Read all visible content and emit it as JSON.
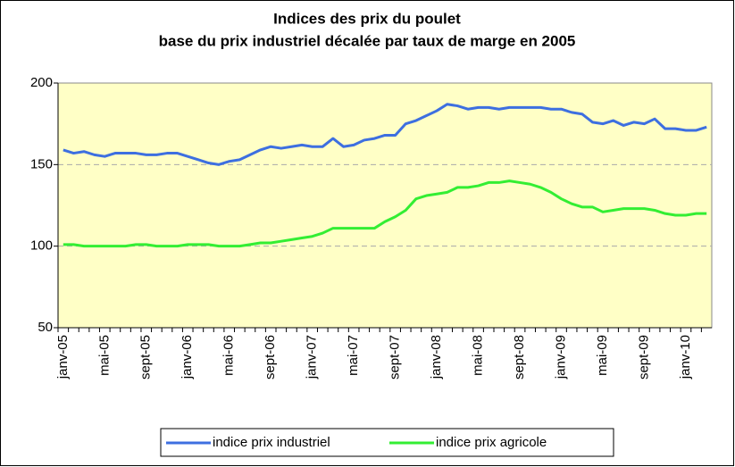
{
  "chart_data": {
    "type": "line",
    "title": "Indices des prix du poulet",
    "subtitle": "base du prix industriel décalée par taux de marge en 2005",
    "categories": [
      "janv-05",
      null,
      null,
      null,
      "mai-05",
      null,
      null,
      null,
      "sept-05",
      null,
      null,
      null,
      "janv-06",
      null,
      null,
      null,
      "mai-06",
      null,
      null,
      null,
      "sept-06",
      null,
      null,
      null,
      "janv-07",
      null,
      null,
      null,
      "mai-07",
      null,
      null,
      null,
      "sept-07",
      null,
      null,
      null,
      "janv-08",
      null,
      null,
      null,
      "mai-08",
      null,
      null,
      null,
      "sept-08",
      null,
      null,
      null,
      "janv-09",
      null,
      null,
      null,
      "mai-09",
      null,
      null,
      null,
      "sept-09",
      null,
      null,
      null,
      "janv-10",
      null,
      null
    ],
    "series": [
      {
        "name": "indice prix industriel",
        "color": "#3d6fe0",
        "values": [
          159,
          157,
          158,
          156,
          155,
          157,
          157,
          157,
          156,
          156,
          157,
          157,
          155,
          153,
          151,
          150,
          152,
          153,
          156,
          159,
          161,
          160,
          161,
          162,
          161,
          161,
          166,
          161,
          162,
          165,
          166,
          168,
          168,
          175,
          177,
          180,
          183,
          187,
          186,
          184,
          185,
          185,
          184,
          185,
          185,
          185,
          185,
          184,
          184,
          182,
          181,
          176,
          175,
          177,
          174,
          176,
          175,
          178,
          172,
          172,
          171,
          171,
          173
        ]
      },
      {
        "name": "indice prix agricole",
        "color": "#33ee33",
        "values": [
          101,
          101,
          100,
          100,
          100,
          100,
          100,
          101,
          101,
          100,
          100,
          100,
          101,
          101,
          101,
          100,
          100,
          100,
          101,
          102,
          102,
          103,
          104,
          105,
          106,
          108,
          111,
          111,
          111,
          111,
          111,
          115,
          118,
          122,
          129,
          131,
          132,
          133,
          136,
          136,
          137,
          139,
          139,
          140,
          139,
          138,
          136,
          133,
          129,
          126,
          124,
          124,
          121,
          122,
          123,
          123,
          123,
          122,
          120,
          119,
          119,
          120,
          120
        ]
      }
    ],
    "ylim": [
      50,
      200
    ],
    "yticks": [
      50,
      100,
      150,
      200
    ],
    "grid": true,
    "legend": "bottom"
  }
}
